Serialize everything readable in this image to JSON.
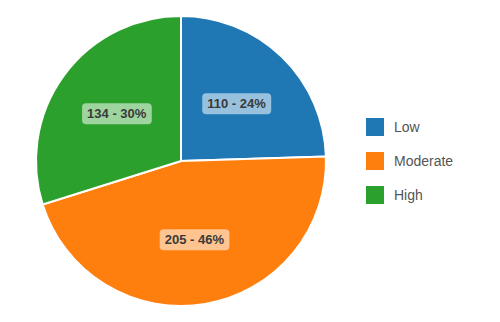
{
  "chart_data": {
    "type": "pie",
    "categories": [
      "Low",
      "Moderate",
      "High"
    ],
    "values": [
      110,
      205,
      134
    ],
    "percentages": [
      24,
      46,
      30
    ],
    "value_labels": [
      "110 - 24%",
      "205 - 46%",
      "134 - 30%"
    ],
    "data_labels": true,
    "legend": "right"
  }
}
